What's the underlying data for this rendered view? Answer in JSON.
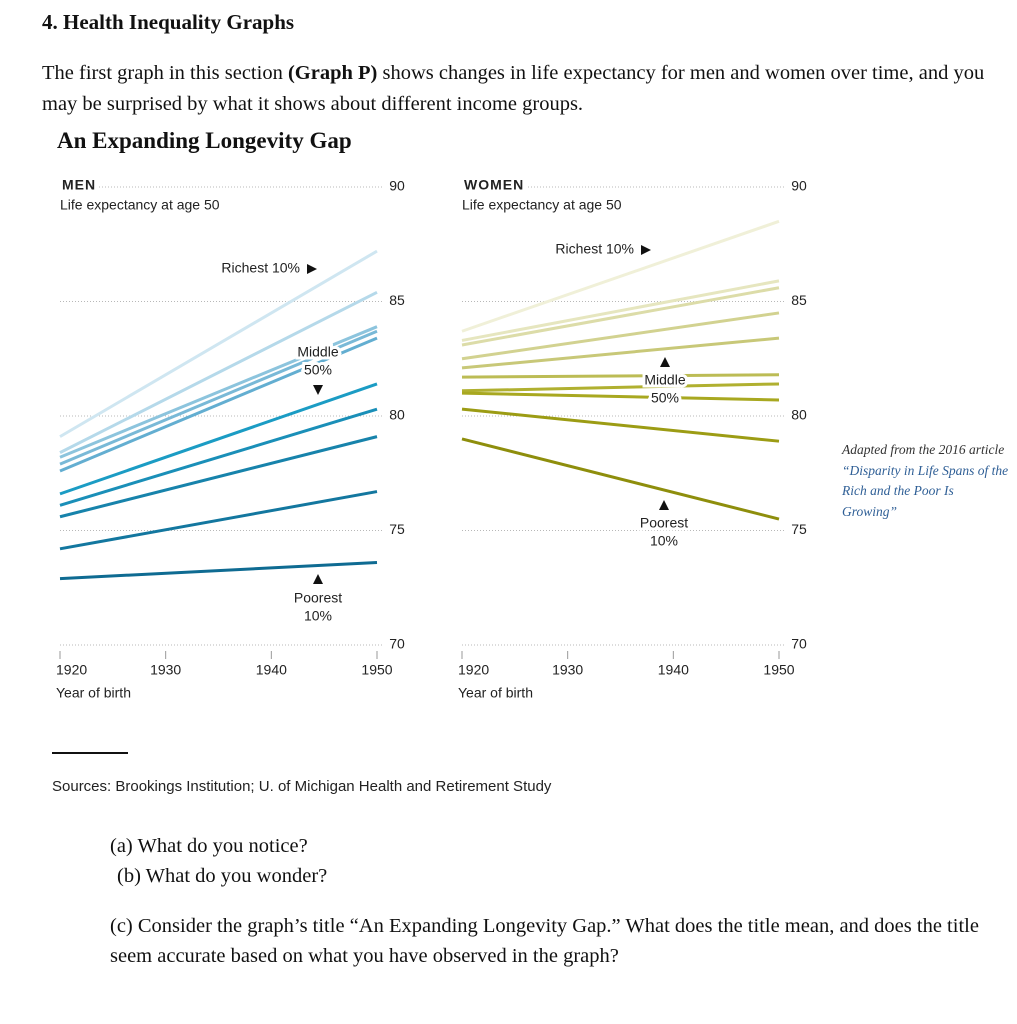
{
  "heading": "4. Health Inequality Graphs",
  "intro": {
    "before": "The first graph in this section ",
    "bold": "(Graph P)",
    "after": " shows changes in life expectancy for men and women over time, and you may be surprised by what it shows about different income groups."
  },
  "figure_title": "An Expanding Longevity Gap",
  "note": {
    "prefix": "Adapted from the 2016 article ",
    "link": "“Disparity in Life Spans of the Rich and the Poor Is Growing”"
  },
  "source": "Sources: Brookings Institution; U. of Michigan Health and Retirement Study",
  "questions": [
    "(a) What do you notice?",
    "(b) What do you wonder?",
    "(c)  Consider the graph’s title “An Expanding Longevity Gap.” What does the title mean, and does the title seem accurate based on what you have observed in the graph?"
  ],
  "chart_data": [
    {
      "type": "line",
      "title": "MEN",
      "subtitle": "Life expectancy at age 50",
      "xlabel": "Year of birth",
      "x": [
        1920,
        1950
      ],
      "xlim": [
        1920,
        1950
      ],
      "ylim": [
        70,
        90
      ],
      "xticks": [
        1920,
        1930,
        1940,
        1950
      ],
      "yticks": [
        70,
        75,
        80,
        85,
        90
      ],
      "grid": true,
      "annotations": [
        [
          "Richest 10%"
        ],
        [
          "Middle",
          "50%"
        ],
        [
          "Poorest",
          "10%"
        ]
      ],
      "series": [
        {
          "color": "#cfe6f1",
          "values": [
            79.1,
            87.2
          ]
        },
        {
          "color": "#b5d9ea",
          "values": [
            78.4,
            85.4
          ]
        },
        {
          "color": "#8cc4dd",
          "values": [
            78.2,
            83.9
          ]
        },
        {
          "color": "#79b9d7",
          "values": [
            77.9,
            83.7
          ]
        },
        {
          "color": "#63aed1",
          "values": [
            77.6,
            83.4
          ]
        },
        {
          "color": "#1b9cc4",
          "values": [
            76.6,
            81.4
          ]
        },
        {
          "color": "#1a8fb8",
          "values": [
            76.1,
            80.3
          ]
        },
        {
          "color": "#1783ab",
          "values": [
            75.6,
            79.1
          ]
        },
        {
          "color": "#13779f",
          "values": [
            74.2,
            76.7
          ]
        },
        {
          "color": "#0f6b92",
          "values": [
            72.9,
            73.6
          ]
        }
      ]
    },
    {
      "type": "line",
      "title": "WOMEN",
      "subtitle": "Life expectancy at age 50",
      "xlabel": "Year of birth",
      "x": [
        1920,
        1950
      ],
      "xlim": [
        1920,
        1950
      ],
      "ylim": [
        70,
        90
      ],
      "xticks": [
        1920,
        1930,
        1940,
        1950
      ],
      "yticks": [
        70,
        75,
        80,
        85,
        90
      ],
      "grid": true,
      "annotations": [
        [
          "Richest 10%"
        ],
        [
          "Middle",
          "50%"
        ],
        [
          "Poorest",
          "10%"
        ]
      ],
      "series": [
        {
          "color": "#f0f0d8",
          "values": [
            83.7,
            88.5
          ]
        },
        {
          "color": "#e6e6bf",
          "values": [
            83.3,
            85.9
          ]
        },
        {
          "color": "#dcdca8",
          "values": [
            83.1,
            85.6
          ]
        },
        {
          "color": "#d2d290",
          "values": [
            82.5,
            84.5
          ]
        },
        {
          "color": "#c8c878",
          "values": [
            82.1,
            83.4
          ]
        },
        {
          "color": "#bcbc55",
          "values": [
            81.7,
            81.8
          ]
        },
        {
          "color": "#b0b030",
          "values": [
            81.1,
            81.4
          ]
        },
        {
          "color": "#a8a820",
          "values": [
            81.0,
            80.7
          ]
        },
        {
          "color": "#9c9c14",
          "values": [
            80.3,
            78.9
          ]
        },
        {
          "color": "#8e8e0c",
          "values": [
            79.0,
            75.5
          ]
        }
      ]
    }
  ]
}
